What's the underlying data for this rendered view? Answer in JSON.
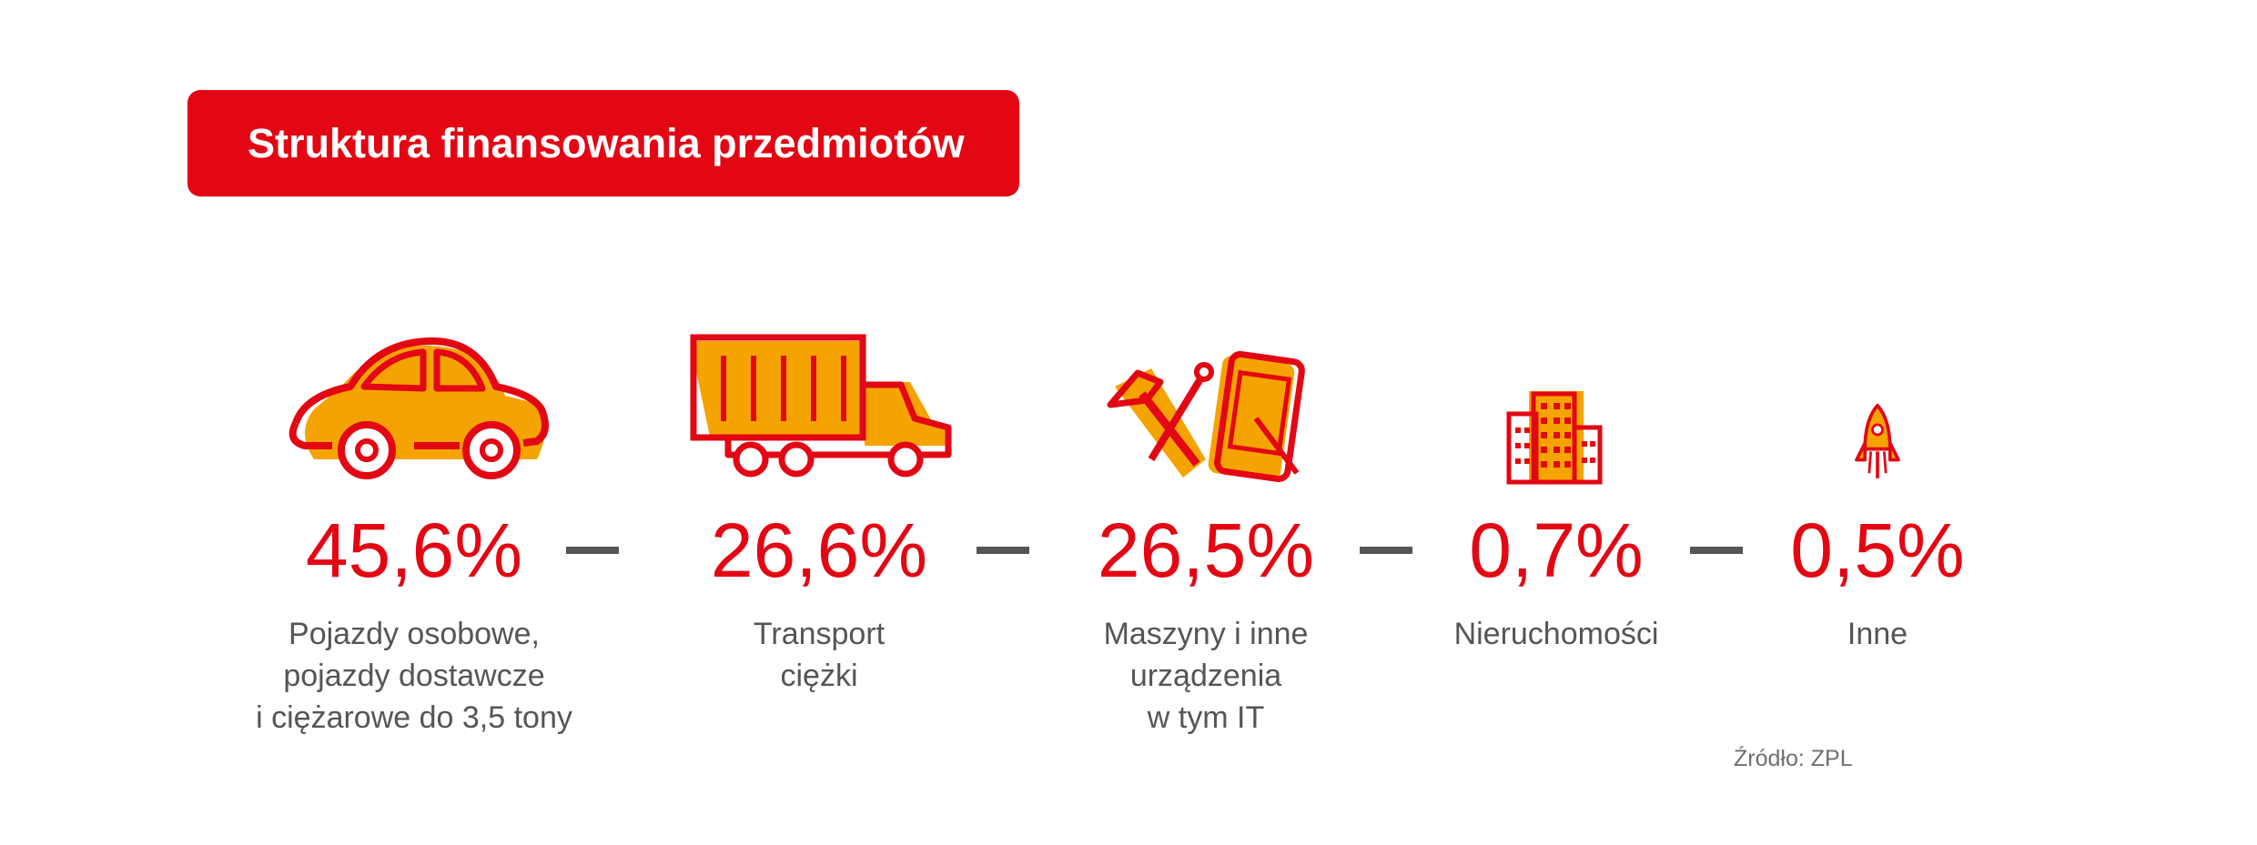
{
  "title": "Struktura finansowania przedmiotów",
  "source": "Źródło: ZPL",
  "colors": {
    "accent": "#e30613",
    "secondary": "#f5a300",
    "text": "#555555"
  },
  "chart_data": {
    "type": "bar",
    "title": "Struktura finansowania przedmiotów",
    "unit": "%",
    "categories": [
      "Pojazdy osobowe,\npojazdy dostawcze\ni ciężarowe do 3,5 tony",
      "Transport\nciężki",
      "Maszyny i inne\nurządzenia\nw tym IT",
      "Nieruchomości",
      "Inne"
    ],
    "values": [
      45.6,
      26.6,
      26.5,
      0.7,
      0.5
    ],
    "value_labels": [
      "45,6%",
      "26,6%",
      "26,5%",
      "0,7%",
      "0,5%"
    ],
    "icons": [
      "car-icon",
      "truck-icon",
      "tools-tablet-icon",
      "building-icon",
      "rocket-icon"
    ],
    "source": "Źródło: ZPL"
  }
}
